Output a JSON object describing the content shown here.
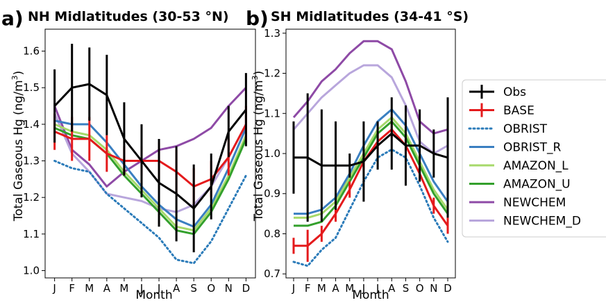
{
  "chart_data": [
    {
      "type": "line",
      "panel_letter": "a)",
      "title": "NH Midlatitudes (30-53 °N)",
      "xlabel": "Month",
      "ylabel_main": "Total Gaseous Hg (ng/m",
      "ylabel_sup": "3",
      "ylabel_tail": ")",
      "categories": [
        "J",
        "F",
        "M",
        "A",
        "M",
        "J",
        "J",
        "A",
        "S",
        "O",
        "N",
        "D"
      ],
      "ylim": [
        0.98,
        1.66
      ],
      "yticks": [
        "1.0",
        "1.1",
        "1.2",
        "1.3",
        "1.4",
        "1.5",
        "1.6"
      ],
      "ytick_values": [
        1.0,
        1.1,
        1.2,
        1.3,
        1.4,
        1.5,
        1.6
      ],
      "series": [
        {
          "name": "NEWCHEM",
          "values": [
            1.45,
            1.33,
            1.29,
            1.23,
            1.27,
            1.3,
            1.33,
            1.34,
            1.36,
            1.39,
            1.45,
            1.5
          ]
        },
        {
          "name": "NEWCHEM_D",
          "values": [
            1.43,
            1.32,
            1.27,
            1.21,
            1.2,
            1.19,
            1.17,
            1.16,
            1.18,
            1.23,
            1.31,
            1.4
          ]
        },
        {
          "name": "OBRIST",
          "values": [
            1.3,
            1.28,
            1.27,
            1.21,
            1.17,
            1.13,
            1.09,
            1.03,
            1.02,
            1.08,
            1.17,
            1.26
          ]
        },
        {
          "name": "AMAZON_L",
          "values": [
            1.4,
            1.38,
            1.37,
            1.33,
            1.27,
            1.22,
            1.17,
            1.12,
            1.11,
            1.17,
            1.26,
            1.37
          ]
        },
        {
          "name": "AMAZON_U",
          "values": [
            1.39,
            1.37,
            1.36,
            1.32,
            1.26,
            1.21,
            1.16,
            1.11,
            1.1,
            1.16,
            1.25,
            1.36
          ]
        },
        {
          "name": "OBRIST_R",
          "values": [
            1.41,
            1.4,
            1.4,
            1.35,
            1.29,
            1.23,
            1.18,
            1.14,
            1.12,
            1.18,
            1.28,
            1.39
          ]
        },
        {
          "name": "BASE",
          "values": [
            1.38,
            1.36,
            1.36,
            1.32,
            1.3,
            1.3,
            1.3,
            1.27,
            1.23,
            1.25,
            1.31,
            1.4
          ],
          "errors": [
            0.05,
            0.06,
            0.06,
            0.05,
            0.04,
            0.04,
            0.05,
            0.06,
            0.05,
            0.05,
            0.05,
            0.05
          ]
        },
        {
          "name": "Obs",
          "values": [
            1.45,
            1.5,
            1.51,
            1.48,
            1.36,
            1.3,
            1.24,
            1.21,
            1.17,
            1.23,
            1.38,
            1.44
          ],
          "errors": [
            0.1,
            0.12,
            0.1,
            0.11,
            0.1,
            0.1,
            0.12,
            0.13,
            0.12,
            0.09,
            0.07,
            0.1
          ]
        }
      ]
    },
    {
      "type": "line",
      "panel_letter": "b)",
      "title": "SH Midlatitudes (34-41 °S)",
      "xlabel": "Month",
      "ylabel_main": "Total Gaseous Hg (ng/m",
      "ylabel_sup": "3",
      "ylabel_tail": ")",
      "categories": [
        "J",
        "F",
        "M",
        "A",
        "M",
        "J",
        "J",
        "A",
        "S",
        "O",
        "N",
        "D"
      ],
      "ylim": [
        0.69,
        1.31
      ],
      "yticks": [
        "0.7",
        "0.8",
        "0.9",
        "1.0",
        "1.1",
        "1.2",
        "1.3"
      ],
      "ytick_values": [
        0.7,
        0.8,
        0.9,
        1.0,
        1.1,
        1.2,
        1.3
      ],
      "series": [
        {
          "name": "NEWCHEM",
          "values": [
            1.09,
            1.13,
            1.18,
            1.21,
            1.25,
            1.28,
            1.28,
            1.26,
            1.18,
            1.08,
            1.05,
            1.06
          ]
        },
        {
          "name": "NEWCHEM_D",
          "values": [
            1.06,
            1.1,
            1.14,
            1.17,
            1.2,
            1.22,
            1.22,
            1.19,
            1.12,
            1.03,
            1.0,
            1.02
          ]
        },
        {
          "name": "OBRIST",
          "values": [
            0.73,
            0.72,
            0.76,
            0.79,
            0.86,
            0.93,
            0.99,
            1.01,
            0.99,
            0.92,
            0.84,
            0.78
          ]
        },
        {
          "name": "AMAZON_L",
          "values": [
            0.84,
            0.84,
            0.85,
            0.88,
            0.94,
            1.0,
            1.06,
            1.09,
            1.05,
            0.98,
            0.91,
            0.86
          ]
        },
        {
          "name": "AMAZON_U",
          "values": [
            0.82,
            0.82,
            0.83,
            0.87,
            0.93,
            0.99,
            1.05,
            1.08,
            1.04,
            0.97,
            0.9,
            0.85
          ]
        },
        {
          "name": "OBRIST_R",
          "values": [
            0.85,
            0.85,
            0.86,
            0.89,
            0.95,
            1.02,
            1.08,
            1.11,
            1.07,
            1.0,
            0.93,
            0.88
          ]
        },
        {
          "name": "BASE",
          "values": [
            0.77,
            0.77,
            0.8,
            0.85,
            0.91,
            0.98,
            1.03,
            1.06,
            1.02,
            0.95,
            0.87,
            0.82
          ],
          "errors": [
            0.02,
            0.04,
            0.02,
            0.02,
            0.02,
            0.02,
            0.02,
            0.02,
            0.02,
            0.02,
            0.02,
            0.02
          ]
        },
        {
          "name": "Obs",
          "values": [
            0.99,
            0.99,
            0.97,
            0.97,
            0.97,
            0.98,
            1.02,
            1.05,
            1.02,
            1.02,
            1.0,
            0.99
          ],
          "errors": [
            0.09,
            0.16,
            0.14,
            0.11,
            0.03,
            0.1,
            0.06,
            0.09,
            0.1,
            0.09,
            0.06,
            0.15
          ]
        }
      ]
    }
  ],
  "legend": {
    "placement": "right",
    "entries": [
      {
        "name": "Obs",
        "color": "#000000",
        "style": "errorbar"
      },
      {
        "name": "BASE",
        "color": "#e41a1c",
        "style": "errorbar"
      },
      {
        "name": "OBRIST",
        "color": "#2b7bb9",
        "style": "dotted"
      },
      {
        "name": "OBRIST_R",
        "color": "#3a7fc1",
        "style": "solid"
      },
      {
        "name": "AMAZON_L",
        "color": "#a6d96a",
        "style": "solid"
      },
      {
        "name": "AMAZON_U",
        "color": "#33a02c",
        "style": "solid"
      },
      {
        "name": "NEWCHEM",
        "color": "#8e4aa6",
        "style": "solid"
      },
      {
        "name": "NEWCHEM_D",
        "color": "#b8a6dc",
        "style": "solid"
      }
    ]
  },
  "colors": {
    "Obs": "#000000",
    "BASE": "#e41a1c",
    "OBRIST": "#2b7bb9",
    "OBRIST_R": "#3a7fc1",
    "AMAZON_L": "#a6d96a",
    "AMAZON_U": "#33a02c",
    "NEWCHEM": "#8e4aa6",
    "NEWCHEM_D": "#b8a6dc"
  }
}
